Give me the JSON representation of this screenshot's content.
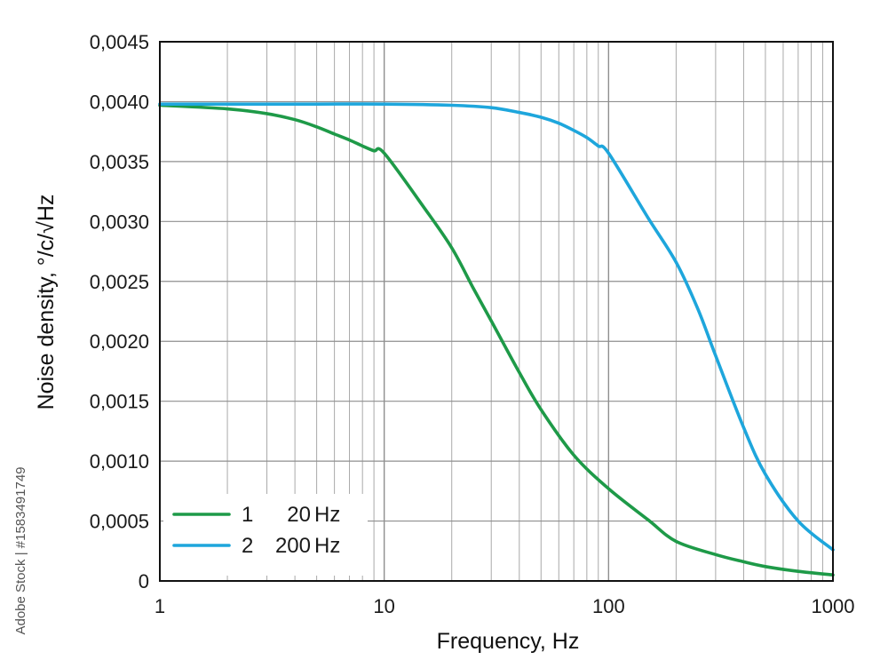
{
  "chart_data": {
    "type": "line",
    "xscale": "log",
    "xlim": [
      1,
      1000
    ],
    "ylim": [
      0,
      0.0045
    ],
    "xlabel": "Frequency, Hz",
    "ylabel": "Noise density, °/c/√Hz",
    "grid": true,
    "x_ticks": [
      {
        "value": 1,
        "label": "1"
      },
      {
        "value": 10,
        "label": "10"
      },
      {
        "value": 100,
        "label": "100"
      },
      {
        "value": 1000,
        "label": "1000"
      }
    ],
    "y_ticks": [
      {
        "value": 0,
        "label": "0"
      },
      {
        "value": 0.0005,
        "label": "0,0005"
      },
      {
        "value": 0.001,
        "label": "0,0010"
      },
      {
        "value": 0.0015,
        "label": "0,0015"
      },
      {
        "value": 0.002,
        "label": "0,0020"
      },
      {
        "value": 0.0025,
        "label": "0,0025"
      },
      {
        "value": 0.003,
        "label": "0,0030"
      },
      {
        "value": 0.0035,
        "label": "0,0035"
      },
      {
        "value": 0.004,
        "label": "0,0040"
      },
      {
        "value": 0.0045,
        "label": "0,0045"
      }
    ],
    "legend_position": "bottom-left",
    "series": [
      {
        "id": "1",
        "name": "20 Hz",
        "freq_value": "20",
        "freq_unit": "Hz",
        "color": "#1e9a48",
        "x": [
          1,
          2,
          3,
          4,
          5,
          6,
          7,
          8,
          9,
          10,
          15,
          20,
          25,
          30,
          40,
          50,
          70,
          100,
          150,
          200,
          300,
          400,
          500,
          700,
          1000
        ],
        "y": [
          0.00397,
          0.00394,
          0.0039,
          0.00385,
          0.00379,
          0.00373,
          0.00368,
          0.00363,
          0.00359,
          0.00357,
          0.00312,
          0.00278,
          0.00244,
          0.00217,
          0.00174,
          0.00143,
          0.00105,
          0.00077,
          0.00051,
          0.00033,
          0.00022,
          0.00016,
          0.00012,
          8e-05,
          5e-05
        ]
      },
      {
        "id": "2",
        "name": "200 Hz",
        "freq_value": "200",
        "freq_unit": "Hz",
        "color": "#1ea6dc",
        "x": [
          1,
          5,
          10,
          20,
          30,
          40,
          50,
          60,
          70,
          80,
          90,
          100,
          150,
          200,
          250,
          300,
          400,
          500,
          700,
          1000
        ],
        "y": [
          0.00398,
          0.00398,
          0.00398,
          0.00397,
          0.00395,
          0.00391,
          0.00387,
          0.00382,
          0.00376,
          0.0037,
          0.00363,
          0.00357,
          0.00303,
          0.00266,
          0.00227,
          0.00188,
          0.00128,
          0.00089,
          0.0005,
          0.00026
        ]
      }
    ]
  },
  "watermark": "Adobe Stock | #1583491749"
}
